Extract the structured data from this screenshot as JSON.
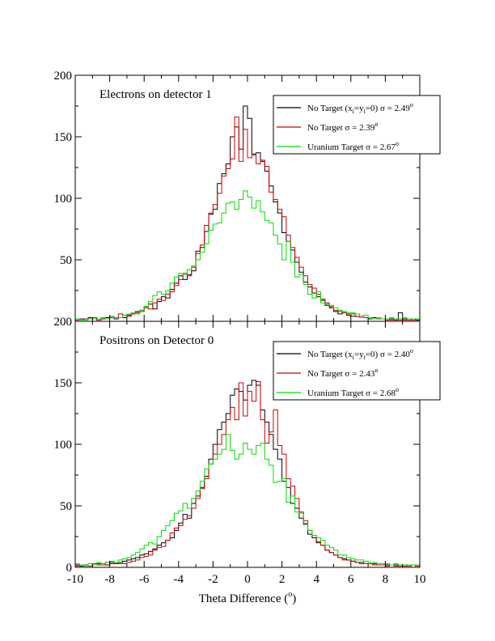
{
  "x_axis": {
    "label": "Theta Difference (",
    "label_unit_sup": "o",
    "label_close": ")"
  },
  "chart_data": [
    {
      "type": "line",
      "step": true,
      "title": "Electrons on detector 1",
      "xlim": [
        -10,
        10
      ],
      "ylim": [
        0,
        200
      ],
      "xticks": [
        -10,
        -8,
        -6,
        -4,
        -2,
        0,
        2,
        4,
        6,
        8,
        10
      ],
      "yticks": [
        50,
        100,
        150,
        200
      ],
      "ytick_labels": [
        "50",
        "100",
        "150",
        "200"
      ],
      "legend": {
        "position": "top-right"
      },
      "x": [
        -10.0,
        -9.75,
        -9.5,
        -9.25,
        -9.0,
        -8.75,
        -8.5,
        -8.25,
        -8.0,
        -7.75,
        -7.5,
        -7.25,
        -7.0,
        -6.75,
        -6.5,
        -6.25,
        -6.0,
        -5.75,
        -5.5,
        -5.25,
        -5.0,
        -4.75,
        -4.5,
        -4.25,
        -4.0,
        -3.75,
        -3.5,
        -3.25,
        -3.0,
        -2.75,
        -2.5,
        -2.25,
        -2.0,
        -1.75,
        -1.5,
        -1.25,
        -1.0,
        -0.75,
        -0.5,
        -0.25,
        0.0,
        0.25,
        0.5,
        0.75,
        1.0,
        1.25,
        1.5,
        1.75,
        2.0,
        2.25,
        2.5,
        2.75,
        3.0,
        3.25,
        3.5,
        3.75,
        4.0,
        4.25,
        4.5,
        4.75,
        5.0,
        5.25,
        5.5,
        5.75,
        6.0,
        6.25,
        6.5,
        6.75,
        7.0,
        7.25,
        7.5,
        7.75,
        8.0,
        8.25,
        8.5,
        8.75,
        9.0,
        9.25,
        9.5,
        9.75
      ],
      "series": [
        {
          "name": "No Target (x",
          "name_sub1": "i",
          "name_mid": "=y",
          "name_sub2": "i",
          "name_end": "=0) σ = 2.49",
          "name_sup": "o",
          "color": "#000000",
          "values": [
            1,
            2,
            1,
            3,
            2,
            1,
            2,
            3,
            4,
            2,
            3,
            3,
            5,
            6,
            8,
            9,
            12,
            14,
            10,
            16,
            20,
            19,
            26,
            31,
            37,
            34,
            38,
            41,
            57,
            60,
            73,
            87,
            91,
            112,
            120,
            128,
            150,
            158,
            140,
            175,
            165,
            136,
            137,
            130,
            122,
            110,
            97,
            88,
            72,
            65,
            58,
            48,
            40,
            32,
            28,
            23,
            20,
            17,
            13,
            11,
            8,
            6,
            7,
            5,
            4,
            4,
            3,
            3,
            2,
            3,
            2,
            2,
            1,
            2,
            1,
            7,
            2,
            1,
            2,
            1
          ]
        },
        {
          "name": "No Target σ = 2.39",
          "name_sup": "o",
          "color": "#cc0000",
          "values": [
            1,
            1,
            2,
            2,
            3,
            1,
            3,
            2,
            3,
            3,
            6,
            5,
            4,
            6,
            7,
            8,
            11,
            10,
            15,
            18,
            17,
            22,
            24,
            29,
            34,
            39,
            37,
            44,
            55,
            62,
            78,
            88,
            95,
            104,
            118,
            124,
            132,
            166,
            130,
            156,
            133,
            135,
            128,
            131,
            126,
            105,
            99,
            91,
            85,
            70,
            60,
            52,
            44,
            37,
            30,
            27,
            22,
            18,
            15,
            12,
            9,
            8,
            7,
            6,
            6,
            4,
            4,
            3,
            3,
            2,
            2,
            2,
            1,
            1,
            2,
            1,
            1,
            1,
            1,
            2
          ]
        },
        {
          "name": "Uranium Target σ = 2.67",
          "name_sup": "o",
          "color": "#00dd00",
          "values": [
            2,
            1,
            1,
            2,
            2,
            2,
            3,
            2,
            4,
            3,
            3,
            5,
            6,
            7,
            6,
            9,
            12,
            16,
            21,
            24,
            22,
            25,
            31,
            36,
            39,
            38,
            42,
            45,
            50,
            56,
            63,
            74,
            79,
            80,
            88,
            96,
            97,
            91,
            99,
            106,
            101,
            92,
            98,
            89,
            82,
            80,
            70,
            63,
            50,
            65,
            48,
            36,
            38,
            30,
            22,
            19,
            24,
            15,
            14,
            13,
            11,
            9,
            8,
            7,
            7,
            6,
            3,
            5,
            3,
            2,
            3,
            2,
            2,
            3,
            2,
            2,
            3,
            2,
            2,
            2
          ]
        }
      ]
    },
    {
      "type": "line",
      "step": true,
      "title": "Positrons on Detector 0",
      "xlim": [
        -10,
        10
      ],
      "ylim": [
        0,
        200
      ],
      "xticks": [
        -10,
        -8,
        -6,
        -4,
        -2,
        0,
        2,
        4,
        6,
        8,
        10
      ],
      "xtick_labels": [
        "-10",
        "-8",
        "-6",
        "-4",
        "-2",
        "0",
        "2",
        "4",
        "6",
        "8",
        "10"
      ],
      "yticks": [
        0,
        50,
        100,
        150,
        200
      ],
      "ytick_labels": [
        "0",
        "50",
        "100",
        "150",
        "200"
      ],
      "legend": {
        "position": "top-right"
      },
      "x": [
        -10.0,
        -9.75,
        -9.5,
        -9.25,
        -9.0,
        -8.75,
        -8.5,
        -8.25,
        -8.0,
        -7.75,
        -7.5,
        -7.25,
        -7.0,
        -6.75,
        -6.5,
        -6.25,
        -6.0,
        -5.75,
        -5.5,
        -5.25,
        -5.0,
        -4.75,
        -4.5,
        -4.25,
        -4.0,
        -3.75,
        -3.5,
        -3.25,
        -3.0,
        -2.75,
        -2.5,
        -2.25,
        -2.0,
        -1.75,
        -1.5,
        -1.25,
        -1.0,
        -0.75,
        -0.5,
        -0.25,
        0.0,
        0.25,
        0.5,
        0.75,
        1.0,
        1.25,
        1.5,
        1.75,
        2.0,
        2.25,
        2.5,
        2.75,
        3.0,
        3.25,
        3.5,
        3.75,
        4.0,
        4.25,
        4.5,
        4.75,
        5.0,
        5.25,
        5.5,
        5.75,
        6.0,
        6.25,
        6.5,
        6.75,
        7.0,
        7.25,
        7.5,
        7.75,
        8.0,
        8.25,
        8.5,
        8.75,
        9.0,
        9.25,
        9.5,
        9.75
      ],
      "series": [
        {
          "name": "No Target (x",
          "name_sub1": "i",
          "name_mid": "=y",
          "name_sub2": "i",
          "name_end": "=0) σ = 2.40",
          "name_sup": "o",
          "color": "#000000",
          "values": [
            2,
            1,
            2,
            3,
            2,
            3,
            3,
            2,
            4,
            3,
            4,
            5,
            6,
            7,
            8,
            10,
            11,
            13,
            15,
            18,
            20,
            22,
            24,
            30,
            36,
            43,
            40,
            52,
            58,
            65,
            74,
            88,
            100,
            112,
            118,
            125,
            140,
            145,
            143,
            136,
            148,
            152,
            148,
            128,
            118,
            108,
            96,
            88,
            70,
            65,
            52,
            48,
            40,
            35,
            27,
            24,
            20,
            18,
            14,
            12,
            10,
            8,
            7,
            6,
            5,
            4,
            4,
            3,
            3,
            3,
            2,
            2,
            2,
            2,
            2,
            1,
            2,
            1,
            2,
            1
          ]
        },
        {
          "name": "No Target σ = 2.43",
          "name_sup": "o",
          "color": "#cc0000",
          "values": [
            1,
            2,
            2,
            1,
            3,
            2,
            2,
            4,
            3,
            4,
            3,
            3,
            4,
            5,
            6,
            8,
            9,
            10,
            14,
            16,
            17,
            22,
            28,
            32,
            34,
            39,
            42,
            48,
            56,
            64,
            72,
            84,
            92,
            100,
            108,
            120,
            130,
            120,
            150,
            123,
            143,
            135,
            151,
            120,
            101,
            110,
            128,
            99,
            92,
            72,
            66,
            56,
            45,
            38,
            30,
            26,
            21,
            18,
            14,
            12,
            10,
            8,
            6,
            6,
            5,
            4,
            3,
            3,
            3,
            2,
            2,
            2,
            1,
            2,
            1,
            1,
            1,
            1,
            2,
            1
          ]
        },
        {
          "name": "Uranium Target σ = 2.68",
          "name_sup": "o",
          "color": "#00dd00",
          "values": [
            3,
            2,
            1,
            3,
            2,
            4,
            3,
            4,
            5,
            4,
            6,
            7,
            8,
            10,
            12,
            15,
            18,
            20,
            19,
            25,
            30,
            34,
            38,
            44,
            46,
            52,
            48,
            56,
            62,
            70,
            80,
            84,
            88,
            92,
            96,
            108,
            95,
            88,
            92,
            101,
            96,
            92,
            99,
            101,
            88,
            83,
            69,
            70,
            72,
            53,
            58,
            45,
            44,
            36,
            30,
            26,
            24,
            22,
            18,
            16,
            14,
            10,
            10,
            8,
            7,
            6,
            6,
            5,
            4,
            4,
            3,
            3,
            3,
            2,
            3,
            2,
            2,
            2,
            2,
            2
          ]
        }
      ]
    }
  ]
}
